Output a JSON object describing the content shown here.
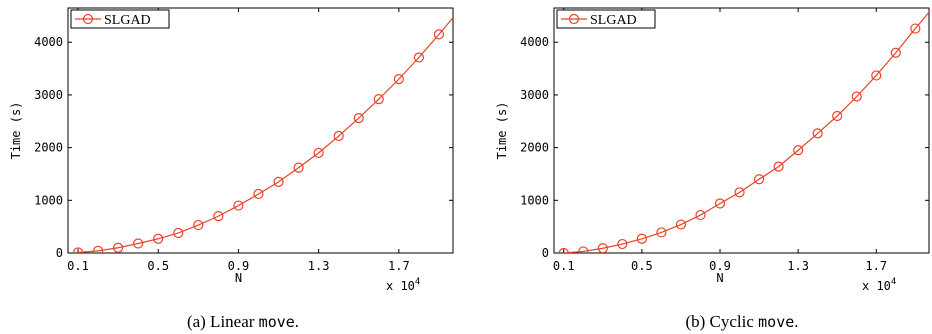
{
  "series_color": "#e8432a",
  "chart_data": [
    {
      "type": "line",
      "xlabel": "N",
      "ylabel": "Time (s)",
      "x_multiplier_label": {
        "prefix": "x 10",
        "exp": "4"
      },
      "xlim": [
        0.05,
        1.97
      ],
      "ylim": [
        0,
        4650
      ],
      "xticks": [
        0.1,
        0.5,
        0.9,
        1.3,
        1.7
      ],
      "xtick_labels": [
        "0.1",
        "0.5",
        "0.9",
        "1.3",
        "1.7"
      ],
      "yticks": [
        0,
        1000,
        2000,
        3000,
        4000
      ],
      "ytick_labels": [
        "0",
        "1000",
        "2000",
        "3000",
        "4000"
      ],
      "legend_position": "top-left",
      "series": [
        {
          "name": "SLGAD",
          "marker": "circle",
          "x": [
            0.1,
            0.2,
            0.3,
            0.4,
            0.5,
            0.6,
            0.7,
            0.8,
            0.9,
            1.0,
            1.1,
            1.2,
            1.3,
            1.4,
            1.5,
            1.6,
            1.7,
            1.8,
            1.9,
            2.0
          ],
          "y": [
            10,
            40,
            100,
            180,
            270,
            380,
            530,
            700,
            900,
            1120,
            1350,
            1620,
            1900,
            2220,
            2560,
            2920,
            3300,
            3710,
            4150,
            4600
          ]
        }
      ],
      "caption": {
        "prefix": "(a)  Linear ",
        "code": "move",
        "suffix": "."
      }
    },
    {
      "type": "line",
      "xlabel": "N",
      "ylabel": "Time (s)",
      "x_multiplier_label": {
        "prefix": "x 10",
        "exp": "4"
      },
      "xlim": [
        0.05,
        1.97
      ],
      "ylim": [
        0,
        4650
      ],
      "xticks": [
        0.1,
        0.5,
        0.9,
        1.3,
        1.7
      ],
      "xtick_labels": [
        "0.1",
        "0.5",
        "0.9",
        "1.3",
        "1.7"
      ],
      "yticks": [
        0,
        1000,
        2000,
        3000,
        4000
      ],
      "ytick_labels": [
        "0",
        "1000",
        "2000",
        "3000",
        "4000"
      ],
      "legend_position": "top-left",
      "series": [
        {
          "name": "SLGAD",
          "marker": "circle",
          "x": [
            0.1,
            0.2,
            0.3,
            0.4,
            0.5,
            0.6,
            0.7,
            0.8,
            0.9,
            1.0,
            1.1,
            1.2,
            1.3,
            1.4,
            1.5,
            1.6,
            1.7,
            1.8,
            1.9,
            2.0
          ],
          "y": [
            0,
            30,
            90,
            170,
            270,
            390,
            540,
            720,
            940,
            1150,
            1400,
            1640,
            1950,
            2270,
            2600,
            2970,
            3370,
            3800,
            4260,
            4700
          ]
        }
      ],
      "caption": {
        "prefix": "(b)  Cyclic ",
        "code": "move",
        "suffix": "."
      }
    }
  ]
}
